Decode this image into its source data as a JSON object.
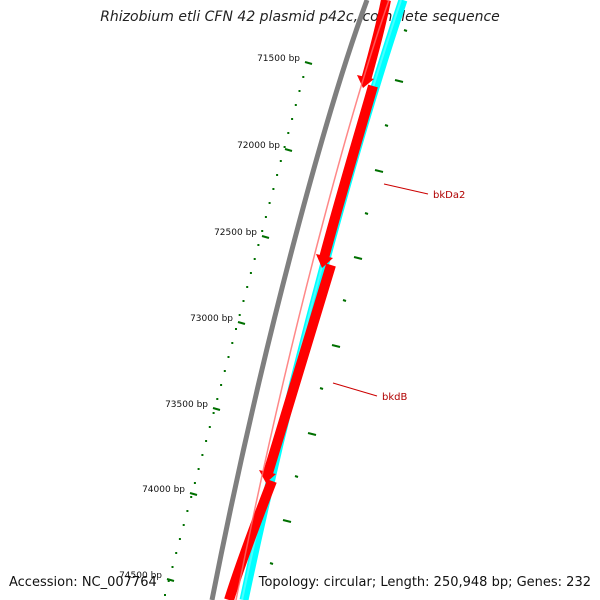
{
  "title": "Rhizobium etli CFN 42 plasmid p42c, complete sequence",
  "footer": {
    "accession": "Accession: NC_007764",
    "summary": "Topology: circular; Length: 250,948 bp; Genes: 232"
  },
  "colors": {
    "backbone": "#7f7f7f",
    "forward_genes": "#ff0000",
    "reverse_strand": "#00ffff",
    "ticks": "#007000",
    "gene_labels": "#b00000"
  },
  "scale_ticks": [
    {
      "label": "71500 bp"
    },
    {
      "label": "72000 bp"
    },
    {
      "label": "72500 bp"
    },
    {
      "label": "73000 bp"
    },
    {
      "label": "73500 bp"
    },
    {
      "label": "74000 bp"
    },
    {
      "label": "74500 bp"
    }
  ],
  "gene_labels": [
    {
      "label": "bkDa2"
    },
    {
      "label": "bkdB"
    }
  ]
}
